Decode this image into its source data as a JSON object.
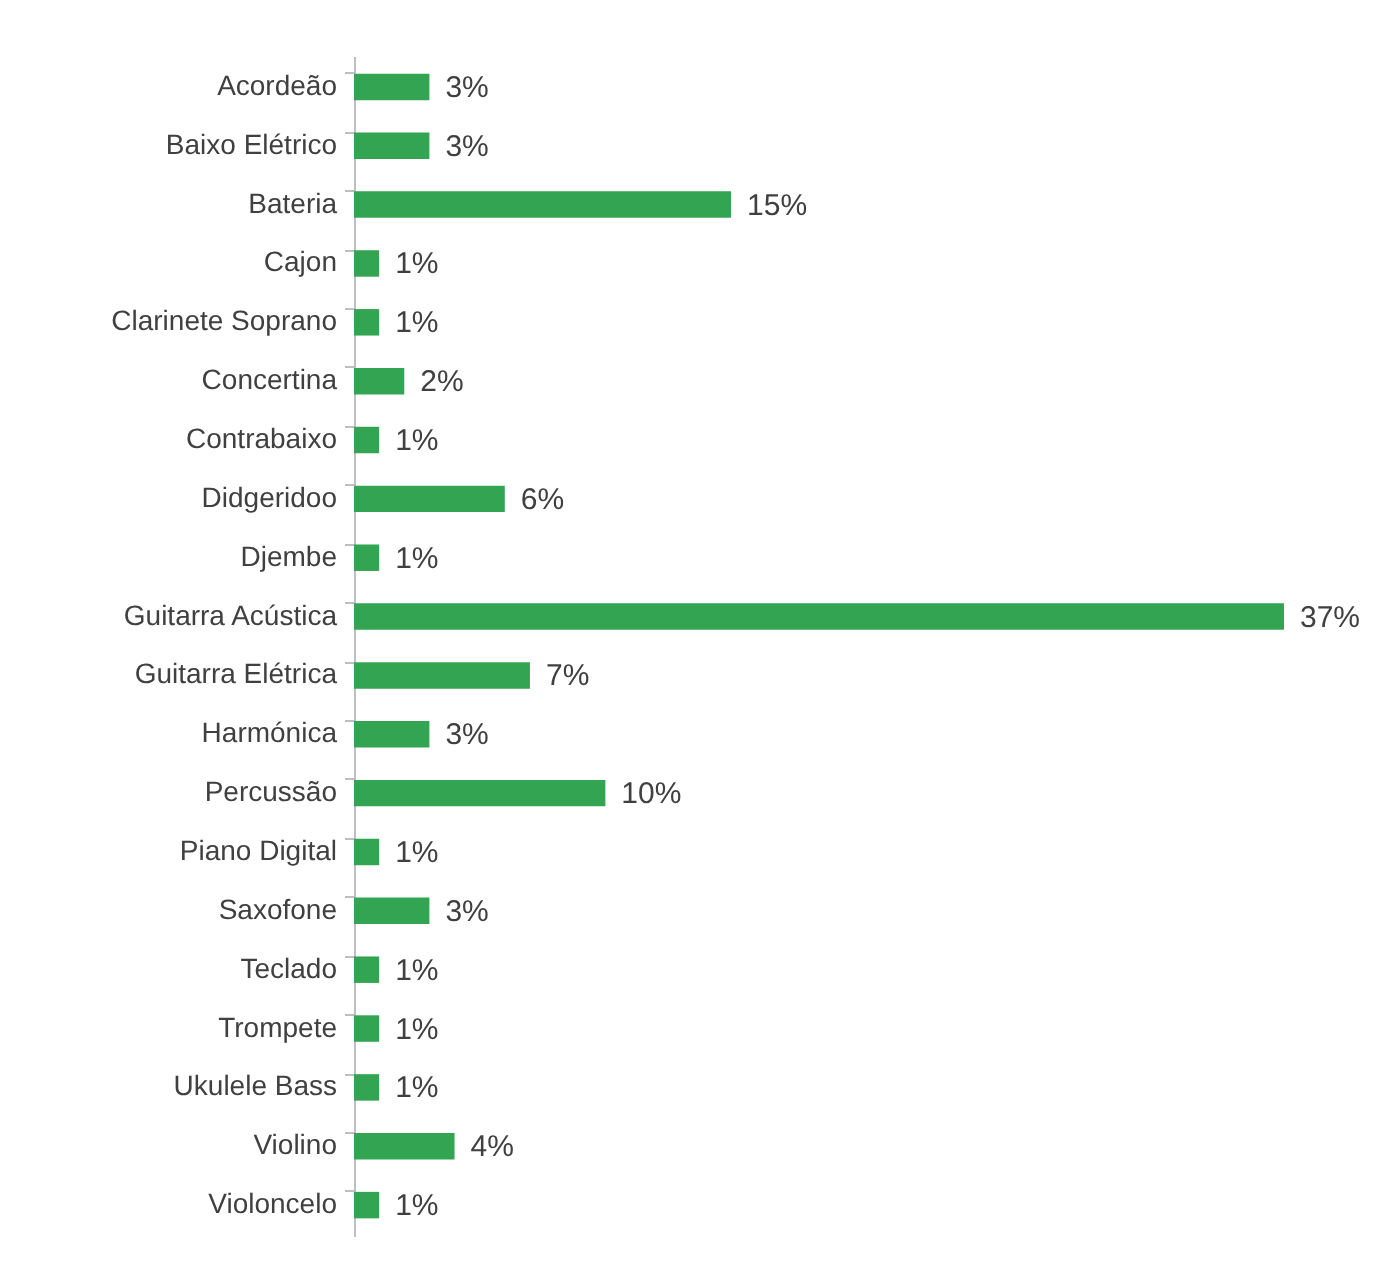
{
  "chart_data": {
    "type": "bar",
    "orientation": "horizontal",
    "categories": [
      "Acordeão",
      "Baixo Elétrico",
      "Bateria",
      "Cajon",
      "Clarinete Soprano",
      "Concertina",
      "Contrabaixo",
      "Didgeridoo",
      "Djembe",
      "Guitarra Acústica",
      "Guitarra Elétrica",
      "Harmónica",
      "Percussão",
      "Piano Digital",
      "Saxofone",
      "Teclado",
      "Trompete",
      "Ukulele Bass",
      "Violino",
      "Violoncelo"
    ],
    "values": [
      3,
      3,
      15,
      1,
      1,
      2,
      1,
      6,
      1,
      37,
      7,
      3,
      10,
      1,
      3,
      1,
      1,
      1,
      4,
      1
    ],
    "value_labels": [
      "3%",
      "3%",
      "15%",
      "1%",
      "1%",
      "2%",
      "1%",
      "6%",
      "1%",
      "37%",
      "7%",
      "3%",
      "10%",
      "1%",
      "3%",
      "1%",
      "1%",
      "1%",
      "4%",
      "1%"
    ],
    "color": "#33a552",
    "grid": false
  }
}
